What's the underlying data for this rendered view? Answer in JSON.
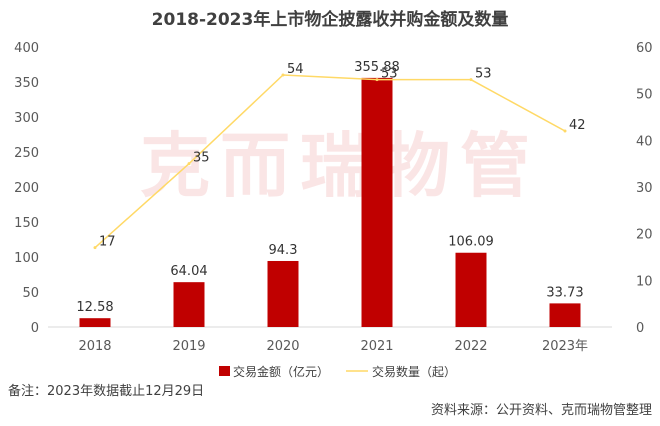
{
  "chart_data": {
    "type": "bar+line",
    "title": "2018-2023年上市物企披露收并购金额及数量",
    "categories": [
      "2018",
      "2019",
      "2020",
      "2021",
      "2022",
      "2023年"
    ],
    "series": [
      {
        "name": "交易金额（亿元）",
        "type": "bar",
        "axis": "left",
        "values": [
          12.58,
          64.04,
          94.3,
          355.88,
          106.09,
          33.73
        ],
        "labels": [
          "12.58",
          "64.04",
          "94.3",
          "355.88",
          "106.09",
          "33.73"
        ]
      },
      {
        "name": "交易数量（起）",
        "type": "line",
        "axis": "right",
        "values": [
          17,
          35,
          54,
          53,
          53,
          42
        ],
        "labels": [
          "17",
          "35",
          "54",
          "53",
          "53",
          "42"
        ]
      }
    ],
    "y_left": {
      "min": 0,
      "max": 400,
      "ticks": [
        "0",
        "50",
        "100",
        "150",
        "200",
        "250",
        "300",
        "350",
        "400"
      ]
    },
    "y_right": {
      "min": 0,
      "max": 60,
      "ticks": [
        "0",
        "10",
        "20",
        "30",
        "40",
        "50",
        "60"
      ]
    },
    "legend_position": "bottom",
    "grid": false,
    "colors": {
      "bar": "#c00000",
      "line": "#ffd966"
    }
  },
  "watermark": "克而瑞物管",
  "footnote": "备注：2023年数据截止12月29日",
  "source": "资料来源：公开资料、克而瑞物管整理"
}
